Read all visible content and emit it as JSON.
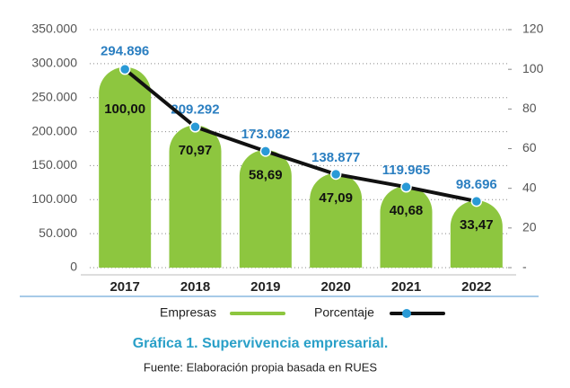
{
  "chart_data": {
    "type": "bar-line",
    "title": "Gráfica 1. Supervivencia empresarial.",
    "source": "Fuente: Elaboración propia basada en RUES",
    "categories": [
      "2017",
      "2018",
      "2019",
      "2020",
      "2021",
      "2022"
    ],
    "series": [
      {
        "name": "Empresas",
        "type": "bar",
        "color": "#8dc63f",
        "values": [
          294896,
          209292,
          173082,
          138877,
          119965,
          98696
        ],
        "value_labels": [
          "294.896",
          "209.292",
          "173.082",
          "138.877",
          "119.965",
          "98.696"
        ]
      },
      {
        "name": "Porcentaje",
        "type": "line",
        "axis": "y2",
        "color": "#111111",
        "marker_color": "#2a9ad6",
        "values": [
          100,
          70.97,
          58.69,
          47.09,
          40.68,
          33.47
        ],
        "value_labels": [
          "100,00",
          "70,97",
          "58,69",
          "47,09",
          "40,68",
          "33,47"
        ]
      }
    ],
    "ylim": [
      0,
      350000
    ],
    "yticks": [
      0,
      {
        "value": 50000,
        "label": "50.000"
      },
      {
        "value": 100000,
        "label": "100.000"
      },
      {
        "value": 150000,
        "label": "150.000"
      },
      {
        "value": 200000,
        "label": "200.000"
      },
      {
        "value": 250000,
        "label": "250.000"
      },
      {
        "value": 300000,
        "label": "300.000"
      },
      {
        "value": 350000,
        "label": "350.000"
      }
    ],
    "y2lim": [
      0,
      120
    ],
    "y2ticks": [
      {
        "value": 0,
        "label": "-"
      },
      20,
      40,
      60,
      80,
      100,
      120
    ],
    "grid": true
  }
}
